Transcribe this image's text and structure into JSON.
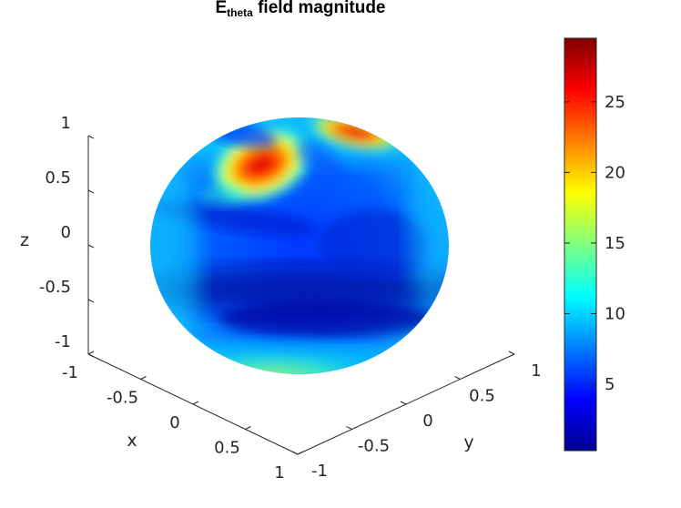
{
  "chart_data": {
    "type": "heatmap",
    "title_main": "E",
    "title_sub": "theta",
    "title_rest": " field magnitude",
    "xlabel": "x",
    "ylabel": "y",
    "zlabel": "z",
    "x_ticks": [
      "-1",
      "-0.5",
      "0",
      "0.5",
      "1"
    ],
    "y_ticks": [
      "-1",
      "-0.5",
      "0",
      "0.5",
      "1"
    ],
    "z_ticks": [
      "-1",
      "-0.5",
      "0",
      "0.5",
      "1"
    ],
    "colorbar": {
      "colormap": "jet",
      "range": [
        0.3,
        29.5
      ],
      "ticks": [
        "5",
        "10",
        "15",
        "20",
        "25"
      ],
      "tick_values": [
        5,
        10,
        15,
        20,
        25
      ]
    },
    "surface": "sphere",
    "grid": false
  }
}
